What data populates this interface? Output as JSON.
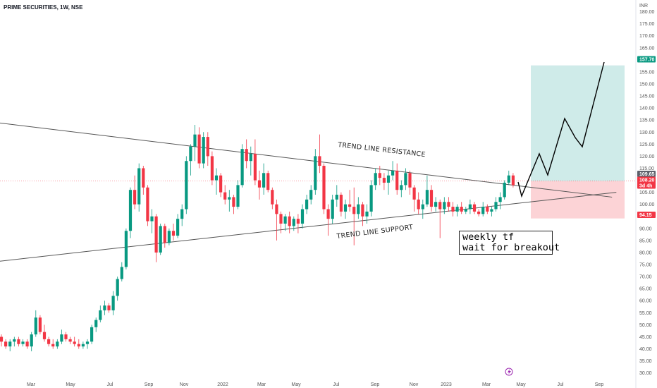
{
  "header": {
    "title": "PRIME SECURITIES, 1W, NSE"
  },
  "currency": "INR",
  "chart_data": {
    "type": "candlestick",
    "timeframe": "1W",
    "x_tick_labels": [
      "Mar",
      "May",
      "Jul",
      "Sep",
      "Nov",
      "2022",
      "Mar",
      "May",
      "Jul",
      "Sep",
      "Nov",
      "2023",
      "Mar",
      "May",
      "Jul",
      "Sep"
    ],
    "y_ticks": [
      30,
      35,
      40,
      45,
      50,
      55,
      60,
      65,
      70,
      75,
      80,
      85,
      90,
      95,
      100,
      105,
      110,
      115,
      120,
      125,
      130,
      135,
      140,
      145,
      150,
      155,
      160,
      165,
      170,
      175,
      180
    ],
    "ylim": [
      28,
      183
    ],
    "price_labels": [
      {
        "value": 157.7,
        "text": "157.70",
        "color": "#089981"
      },
      {
        "value": 109.65,
        "text": "109.65",
        "color": "#5d606b"
      },
      {
        "value": 108.2,
        "text": "108.20",
        "color": "#f23645"
      },
      {
        "value": 105.5,
        "text": "3d 4h",
        "color": "#f23645"
      },
      {
        "value": 94.15,
        "text": "94.15",
        "color": "#f23645"
      }
    ],
    "candles_ohlc": [
      [
        45,
        46,
        41,
        43
      ],
      [
        43,
        44,
        40,
        41
      ],
      [
        41,
        44,
        39,
        43
      ],
      [
        43,
        45,
        41,
        44
      ],
      [
        44,
        45,
        41,
        42
      ],
      [
        42,
        44,
        41,
        43
      ],
      [
        43,
        44,
        40,
        41
      ],
      [
        41,
        47,
        39,
        46
      ],
      [
        46,
        56,
        45,
        53
      ],
      [
        53,
        54,
        46,
        47
      ],
      [
        47,
        50,
        43,
        44
      ],
      [
        44,
        45,
        41,
        42
      ],
      [
        42,
        44,
        40,
        41
      ],
      [
        41,
        44,
        40,
        43
      ],
      [
        43,
        48,
        42,
        46
      ],
      [
        46,
        47,
        43,
        44
      ],
      [
        44,
        45,
        42,
        43
      ],
      [
        43,
        45,
        41,
        42
      ],
      [
        42,
        44,
        40,
        41
      ],
      [
        41,
        43,
        40,
        42
      ],
      [
        42,
        44,
        40,
        43
      ],
      [
        43,
        50,
        42,
        49
      ],
      [
        49,
        53,
        47,
        52
      ],
      [
        52,
        58,
        51,
        56
      ],
      [
        56,
        60,
        54,
        58
      ],
      [
        58,
        59,
        55,
        56
      ],
      [
        56,
        64,
        54,
        62
      ],
      [
        62,
        70,
        60,
        69
      ],
      [
        69,
        76,
        68,
        74
      ],
      [
        74,
        90,
        73,
        89
      ],
      [
        89,
        107,
        86,
        106
      ],
      [
        106,
        112,
        98,
        100
      ],
      [
        100,
        117,
        97,
        115
      ],
      [
        115,
        116,
        104,
        107
      ],
      [
        107,
        108,
        91,
        93
      ],
      [
        93,
        98,
        88,
        95
      ],
      [
        95,
        96,
        76,
        80
      ],
      [
        80,
        92,
        79,
        91
      ],
      [
        91,
        92,
        82,
        84
      ],
      [
        84,
        90,
        83,
        89
      ],
      [
        89,
        92,
        85,
        87
      ],
      [
        87,
        96,
        86,
        94
      ],
      [
        94,
        100,
        91,
        98
      ],
      [
        98,
        120,
        96,
        118
      ],
      [
        118,
        125,
        112,
        124
      ],
      [
        124,
        133,
        118,
        129
      ],
      [
        129,
        132,
        115,
        117
      ],
      [
        117,
        130,
        115,
        128
      ],
      [
        128,
        130,
        116,
        120
      ],
      [
        120,
        122,
        108,
        110
      ],
      [
        110,
        115,
        104,
        112
      ],
      [
        112,
        113,
        103,
        105
      ],
      [
        105,
        108,
        100,
        102
      ],
      [
        102,
        106,
        97,
        103
      ],
      [
        103,
        104,
        96,
        99
      ],
      [
        99,
        110,
        98,
        108
      ],
      [
        108,
        125,
        107,
        123
      ],
      [
        123,
        127,
        115,
        118
      ],
      [
        118,
        124,
        112,
        121
      ],
      [
        121,
        127,
        108,
        110
      ],
      [
        110,
        114,
        102,
        107
      ],
      [
        107,
        117,
        104,
        113
      ],
      [
        113,
        114,
        105,
        106
      ],
      [
        106,
        107,
        98,
        100
      ],
      [
        100,
        102,
        85,
        96
      ],
      [
        96,
        97,
        88,
        92
      ],
      [
        92,
        96,
        89,
        95
      ],
      [
        95,
        97,
        88,
        91
      ],
      [
        91,
        95,
        89,
        94
      ],
      [
        94,
        96,
        88,
        92
      ],
      [
        92,
        100,
        90,
        98
      ],
      [
        98,
        104,
        96,
        102
      ],
      [
        102,
        108,
        100,
        106
      ],
      [
        106,
        123,
        104,
        120
      ],
      [
        120,
        129,
        113,
        116
      ],
      [
        116,
        117,
        96,
        98
      ],
      [
        98,
        100,
        87,
        94
      ],
      [
        94,
        104,
        92,
        102
      ],
      [
        102,
        108,
        99,
        104
      ],
      [
        104,
        105,
        95,
        97
      ],
      [
        97,
        102,
        94,
        100
      ],
      [
        100,
        106,
        97,
        99
      ],
      [
        99,
        107,
        83,
        96
      ],
      [
        96,
        103,
        94,
        100
      ],
      [
        100,
        101,
        91,
        95
      ],
      [
        95,
        100,
        92,
        97
      ],
      [
        97,
        110,
        95,
        108
      ],
      [
        108,
        115,
        106,
        113
      ],
      [
        113,
        116,
        108,
        111
      ],
      [
        111,
        113,
        106,
        109
      ],
      [
        109,
        114,
        104,
        112
      ],
      [
        112,
        118,
        110,
        114
      ],
      [
        114,
        117,
        104,
        106
      ],
      [
        106,
        110,
        103,
        108
      ],
      [
        108,
        115,
        106,
        113
      ],
      [
        113,
        114,
        104,
        107
      ],
      [
        107,
        108,
        97,
        102
      ],
      [
        102,
        105,
        96,
        98
      ],
      [
        98,
        102,
        94,
        100
      ],
      [
        100,
        112,
        99,
        106
      ],
      [
        106,
        108,
        97,
        99
      ],
      [
        99,
        103,
        97,
        101
      ],
      [
        101,
        102,
        86,
        98
      ],
      [
        98,
        103,
        96,
        101
      ],
      [
        101,
        103,
        97,
        99
      ],
      [
        99,
        101,
        95,
        97
      ],
      [
        97,
        100,
        95,
        99
      ],
      [
        99,
        101,
        96,
        97
      ],
      [
        97,
        99,
        96,
        98
      ],
      [
        98,
        102,
        96,
        100
      ],
      [
        100,
        101,
        96,
        97
      ],
      [
        97,
        98,
        95,
        96
      ],
      [
        96,
        101,
        95,
        99
      ],
      [
        99,
        100,
        96,
        97
      ],
      [
        97,
        99,
        95,
        98
      ],
      [
        98,
        103,
        97,
        101
      ],
      [
        101,
        105,
        98,
        103
      ],
      [
        103,
        110,
        102,
        109
      ],
      [
        109,
        114,
        108,
        112
      ],
      [
        112,
        113,
        107,
        108
      ]
    ],
    "projection_path": [
      [
        103.0,
        105
      ],
      [
        101.2,
        120
      ],
      [
        102.3,
        134
      ],
      [
        104.3,
        137
      ],
      [
        105.3,
        131
      ],
      [
        106.3,
        130
      ],
      [
        106.9,
        121
      ],
      [
        108.6,
        157.7
      ]
    ],
    "target_zone": {
      "top": 157.7,
      "bottom": 109.65,
      "color": "rgba(38,166,154,0.22)"
    },
    "stop_zone": {
      "top": 109.65,
      "bottom": 94.15,
      "color": "rgba(242,54,69,0.22)"
    },
    "trendlines": [
      {
        "name": "TREND LINE RESISTANCE",
        "from": [
          -1.35,
          134
        ],
        "to": [
          73,
          103
        ]
      },
      {
        "name": "TREND LINE SUPPORT",
        "from": [
          -4.4,
          75.6
        ],
        "to": [
          74,
          105
        ]
      }
    ],
    "annotations": [
      "TREND LINE RESISTANCE",
      "TREND LINE SUPPORT"
    ],
    "note_lines": [
      "weekly tf",
      "wait for breakout"
    ],
    "horizontal_level": 109.65
  }
}
